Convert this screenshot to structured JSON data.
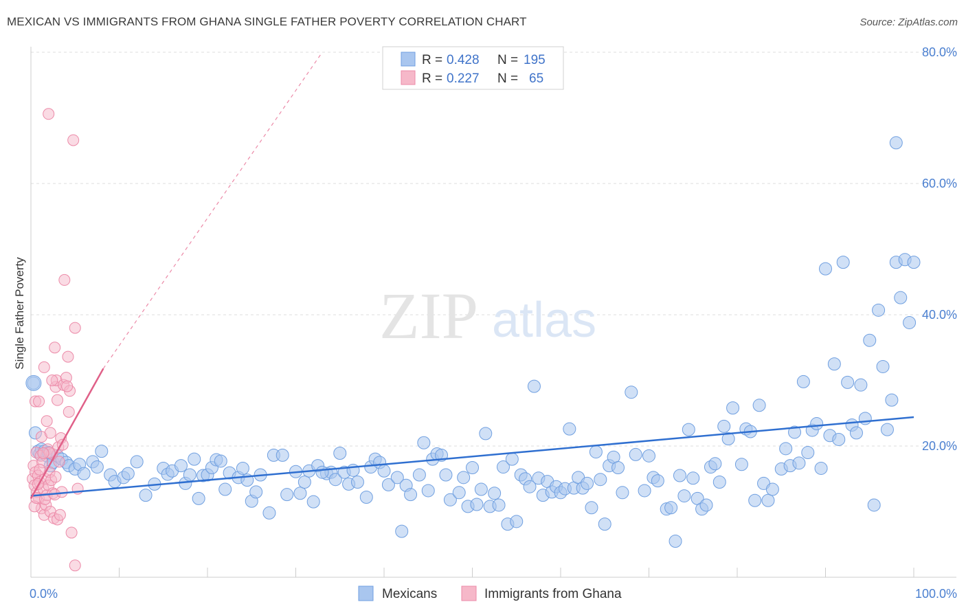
{
  "title": "MEXICAN VS IMMIGRANTS FROM GHANA SINGLE FATHER POVERTY CORRELATION CHART",
  "source": "Source: ZipAtlas.com",
  "watermark": {
    "zip": "ZIP",
    "atlas": "atlas"
  },
  "colors": {
    "blue_fill": "#a9c6ef",
    "blue_stroke": "#6f9fe0",
    "blue_line": "#2f6fd0",
    "pink_fill": "#f6b8c9",
    "pink_stroke": "#ec8aa8",
    "pink_line": "#e06088",
    "grid": "#dddddd",
    "axis_text": "#4a7fd0"
  },
  "legend": {
    "rows": [
      {
        "r_label": "R =",
        "r_value": "0.428",
        "n_label": "N =",
        "n_value": "195",
        "series": "blue"
      },
      {
        "r_label": "R =",
        "r_value": "0.227",
        "n_label": "N =",
        "n_value": "65",
        "series": "pink"
      }
    ]
  },
  "chart_data": {
    "type": "scatter",
    "title": "MEXICAN VS IMMIGRANTS FROM GHANA SINGLE FATHER POVERTY CORRELATION CHART",
    "xlabel": "",
    "ylabel": "Single Father Poverty",
    "xlim": [
      0,
      100
    ],
    "ylim": [
      0,
      80
    ],
    "x_ticks": [
      "0.0%",
      "100.0%"
    ],
    "y_ticks": [
      {
        "value": 20,
        "label": "20.0%"
      },
      {
        "value": 40,
        "label": "40.0%"
      },
      {
        "value": 60,
        "label": "60.0%"
      },
      {
        "value": 80,
        "label": "80.0%"
      }
    ],
    "grid": true,
    "legend_position": "top-center",
    "series": [
      {
        "name": "Mexicans",
        "color": "#a9c6ef",
        "trend": {
          "x0": 0,
          "y0": 12.4,
          "x1": 100,
          "y1": 24.4
        },
        "points": [
          [
            0.3,
            29.6
          ],
          [
            0.5,
            22.0
          ],
          [
            0.8,
            19.2
          ],
          [
            1.0,
            18.8
          ],
          [
            1.2,
            19.5
          ],
          [
            1.5,
            19.2
          ],
          [
            1.8,
            18.5
          ],
          [
            2.0,
            19.0
          ],
          [
            2.2,
            17.0
          ],
          [
            2.5,
            17.5
          ],
          [
            3.0,
            18.5
          ],
          [
            3.5,
            18.0
          ],
          [
            4.0,
            17.5
          ],
          [
            4.3,
            17.0
          ],
          [
            5.0,
            16.5
          ],
          [
            5.5,
            17.2
          ],
          [
            6.0,
            15.8
          ],
          [
            7.0,
            17.6
          ],
          [
            7.5,
            16.8
          ],
          [
            8.0,
            19.2
          ],
          [
            9.0,
            15.6
          ],
          [
            9.5,
            14.6
          ],
          [
            10.5,
            15.2
          ],
          [
            11.0,
            15.8
          ],
          [
            12.0,
            17.6
          ],
          [
            13.0,
            12.5
          ],
          [
            14.0,
            14.2
          ],
          [
            15.0,
            16.6
          ],
          [
            15.5,
            15.7
          ],
          [
            16.0,
            16.2
          ],
          [
            17.0,
            17.0
          ],
          [
            17.5,
            14.3
          ],
          [
            18.5,
            18.0
          ],
          [
            19.0,
            12.0
          ],
          [
            19.5,
            15.5
          ],
          [
            20.0,
            15.6
          ],
          [
            20.5,
            16.7
          ],
          [
            21.0,
            17.9
          ],
          [
            21.5,
            17.7
          ],
          [
            22.0,
            13.4
          ],
          [
            22.5,
            15.9
          ],
          [
            23.5,
            15.2
          ],
          [
            24.0,
            16.6
          ],
          [
            24.5,
            14.8
          ],
          [
            25.0,
            11.6
          ],
          [
            25.5,
            13.0
          ],
          [
            26.0,
            15.6
          ],
          [
            27.0,
            9.8
          ],
          [
            27.5,
            18.6
          ],
          [
            28.5,
            18.6
          ],
          [
            29.0,
            12.6
          ],
          [
            30.0,
            16.1
          ],
          [
            30.5,
            12.8
          ],
          [
            31.0,
            14.5
          ],
          [
            31.5,
            16.2
          ],
          [
            32.0,
            11.5
          ],
          [
            32.5,
            17.0
          ],
          [
            33.5,
            15.8
          ],
          [
            34.0,
            16.0
          ],
          [
            34.5,
            14.9
          ],
          [
            35.0,
            18.9
          ],
          [
            35.5,
            16.0
          ],
          [
            36.0,
            14.2
          ],
          [
            36.5,
            16.3
          ],
          [
            37.0,
            14.5
          ],
          [
            38.0,
            12.2
          ],
          [
            38.5,
            16.8
          ],
          [
            39.0,
            18.0
          ],
          [
            39.5,
            17.5
          ],
          [
            40.0,
            16.2
          ],
          [
            40.5,
            14.1
          ],
          [
            41.5,
            15.2
          ],
          [
            42.0,
            7.0
          ],
          [
            42.5,
            14.0
          ],
          [
            43.0,
            12.6
          ],
          [
            44.0,
            15.6
          ],
          [
            44.5,
            20.5
          ],
          [
            45.0,
            13.2
          ],
          [
            45.5,
            18.0
          ],
          [
            46.0,
            18.8
          ],
          [
            46.5,
            18.6
          ],
          [
            47.5,
            11.8
          ],
          [
            48.5,
            12.9
          ],
          [
            49.0,
            15.2
          ],
          [
            49.5,
            10.8
          ],
          [
            50.0,
            16.7
          ],
          [
            50.5,
            11.1
          ],
          [
            51.0,
            13.4
          ],
          [
            51.5,
            21.9
          ],
          [
            52.0,
            10.8
          ],
          [
            52.5,
            12.8
          ],
          [
            53.0,
            11.0
          ],
          [
            53.5,
            16.8
          ],
          [
            54.0,
            8.1
          ],
          [
            54.5,
            18.0
          ],
          [
            55.0,
            8.5
          ],
          [
            55.5,
            15.6
          ],
          [
            56.0,
            15.0
          ],
          [
            56.5,
            13.8
          ],
          [
            57.0,
            29.1
          ],
          [
            57.5,
            15.1
          ],
          [
            58.0,
            12.5
          ],
          [
            58.5,
            14.6
          ],
          [
            59.0,
            13.0
          ],
          [
            59.5,
            13.8
          ],
          [
            60.0,
            12.9
          ],
          [
            60.5,
            13.5
          ],
          [
            61.0,
            22.6
          ],
          [
            61.5,
            13.6
          ],
          [
            62.0,
            15.2
          ],
          [
            62.5,
            13.6
          ],
          [
            63.5,
            10.6
          ],
          [
            64.0,
            19.1
          ],
          [
            64.5,
            14.9
          ],
          [
            65.0,
            8.1
          ],
          [
            65.5,
            17.0
          ],
          [
            66.0,
            18.3
          ],
          [
            66.5,
            16.7
          ],
          [
            67.0,
            12.9
          ],
          [
            68.0,
            28.2
          ],
          [
            68.5,
            18.7
          ],
          [
            69.5,
            13.2
          ],
          [
            70.0,
            18.5
          ],
          [
            70.5,
            15.2
          ],
          [
            71.0,
            14.7
          ],
          [
            72.0,
            10.4
          ],
          [
            72.5,
            10.6
          ],
          [
            73.0,
            5.5
          ],
          [
            73.5,
            15.5
          ],
          [
            74.0,
            12.4
          ],
          [
            74.5,
            22.5
          ],
          [
            75.0,
            15.1
          ],
          [
            75.5,
            12.0
          ],
          [
            76.0,
            10.4
          ],
          [
            76.5,
            11.0
          ],
          [
            77.0,
            16.8
          ],
          [
            77.5,
            17.3
          ],
          [
            78.0,
            14.5
          ],
          [
            78.5,
            23.0
          ],
          [
            79.0,
            21.1
          ],
          [
            79.5,
            25.8
          ],
          [
            80.5,
            17.2
          ],
          [
            81.0,
            22.6
          ],
          [
            81.5,
            22.2
          ],
          [
            82.0,
            11.7
          ],
          [
            82.5,
            26.2
          ],
          [
            83.0,
            14.3
          ],
          [
            83.5,
            11.7
          ],
          [
            84.0,
            13.4
          ],
          [
            85.0,
            16.5
          ],
          [
            85.5,
            19.6
          ],
          [
            86.0,
            17.0
          ],
          [
            86.5,
            22.1
          ],
          [
            87.0,
            17.4
          ],
          [
            87.5,
            29.8
          ],
          [
            88.0,
            19.0
          ],
          [
            88.5,
            22.4
          ],
          [
            89.0,
            23.4
          ],
          [
            89.5,
            16.6
          ],
          [
            90.0,
            47.0
          ],
          [
            90.5,
            21.6
          ],
          [
            91.0,
            32.5
          ],
          [
            91.5,
            21.0
          ],
          [
            92.0,
            48.0
          ],
          [
            92.5,
            29.7
          ],
          [
            93.0,
            23.2
          ],
          [
            93.5,
            22.0
          ],
          [
            94.0,
            29.3
          ],
          [
            94.5,
            24.2
          ],
          [
            95.0,
            36.1
          ],
          [
            95.5,
            11.0
          ],
          [
            96.0,
            40.7
          ],
          [
            96.5,
            32.1
          ],
          [
            97.0,
            22.5
          ],
          [
            97.5,
            27.0
          ],
          [
            98.0,
            48.0
          ],
          [
            98.5,
            42.6
          ],
          [
            99.0,
            48.4
          ],
          [
            99.5,
            38.8
          ],
          [
            100.0,
            48.0
          ],
          [
            18.0,
            15.6
          ],
          [
            33.0,
            16.0
          ],
          [
            47.0,
            15.6
          ],
          [
            63.0,
            14.3
          ],
          [
            98.0,
            66.2
          ]
        ]
      },
      {
        "name": "Immigrants from Ghana",
        "color": "#f6b8c9",
        "trend": {
          "x0": 0,
          "y0": 12.0,
          "x1": 8.2,
          "y1": 31.8
        },
        "trend_extension": {
          "x0": 8.2,
          "y0": 31.8,
          "x1": 33.0,
          "y1": 80.0
        },
        "points": [
          [
            0.2,
            15.0
          ],
          [
            0.3,
            17.0
          ],
          [
            0.4,
            14.0
          ],
          [
            0.5,
            16.0
          ],
          [
            0.6,
            19.0
          ],
          [
            0.7,
            13.0
          ],
          [
            0.8,
            15.5
          ],
          [
            0.9,
            12.0
          ],
          [
            1.0,
            14.5
          ],
          [
            1.1,
            18.5
          ],
          [
            1.2,
            10.5
          ],
          [
            1.3,
            17.5
          ],
          [
            1.4,
            13.5
          ],
          [
            1.5,
            9.5
          ],
          [
            1.6,
            15.0
          ],
          [
            1.7,
            11.0
          ],
          [
            1.8,
            12.5
          ],
          [
            1.9,
            19.5
          ],
          [
            2.0,
            14.0
          ],
          [
            2.1,
            16.0
          ],
          [
            2.2,
            10.0
          ],
          [
            2.3,
            14.8
          ],
          [
            2.4,
            18.8
          ],
          [
            2.5,
            12.8
          ],
          [
            2.6,
            9.0
          ],
          [
            2.7,
            35.0
          ],
          [
            2.8,
            29.0
          ],
          [
            2.9,
            30.0
          ],
          [
            3.0,
            27.0
          ],
          [
            3.1,
            19.8
          ],
          [
            0.5,
            26.8
          ],
          [
            0.9,
            26.8
          ],
          [
            1.2,
            21.4
          ],
          [
            1.5,
            32.0
          ],
          [
            1.8,
            23.8
          ],
          [
            2.1,
            19.0
          ],
          [
            2.4,
            30.0
          ],
          [
            2.7,
            12.6
          ],
          [
            3.0,
            8.8
          ],
          [
            3.3,
            9.5
          ],
          [
            3.4,
            21.2
          ],
          [
            3.6,
            20.2
          ],
          [
            3.7,
            29.3
          ],
          [
            3.8,
            45.3
          ],
          [
            4.0,
            30.4
          ],
          [
            4.2,
            33.6
          ],
          [
            4.4,
            28.4
          ],
          [
            4.6,
            6.8
          ],
          [
            4.8,
            66.6
          ],
          [
            5.0,
            38.0
          ],
          [
            5.3,
            13.5
          ],
          [
            2.0,
            70.6
          ],
          [
            2.2,
            22.0
          ],
          [
            0.4,
            10.8
          ],
          [
            0.6,
            12.1
          ],
          [
            0.8,
            14.2
          ],
          [
            1.0,
            16.4
          ],
          [
            1.4,
            18.9
          ],
          [
            1.6,
            11.9
          ],
          [
            2.8,
            15.3
          ],
          [
            3.2,
            17.6
          ],
          [
            5.0,
            1.8
          ],
          [
            4.1,
            29.1
          ],
          [
            3.5,
            13.0
          ],
          [
            4.3,
            25.2
          ]
        ]
      }
    ]
  },
  "bottom_legend": [
    {
      "label": "Mexicans",
      "series": "blue"
    },
    {
      "label": "Immigrants from Ghana",
      "series": "pink"
    }
  ]
}
